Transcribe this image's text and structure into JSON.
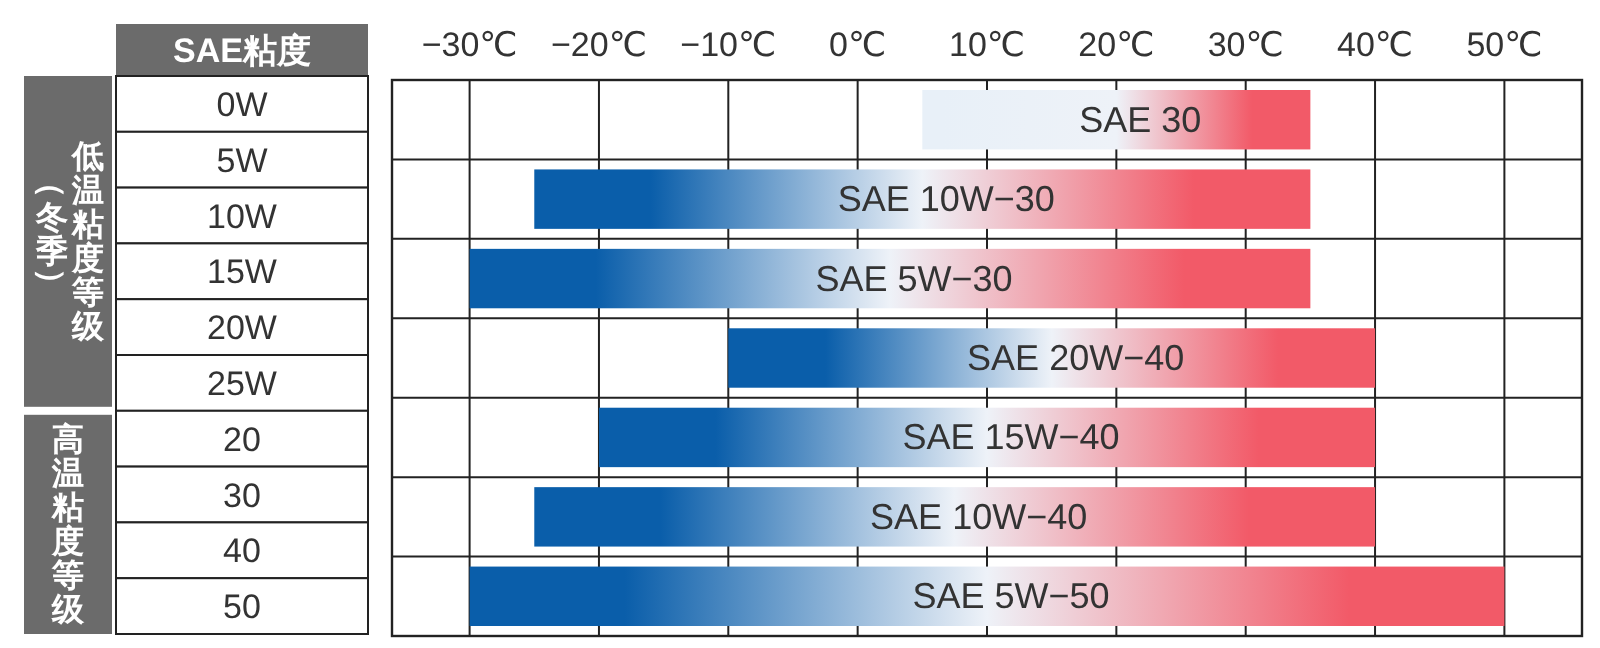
{
  "chart_data": {
    "type": "bar",
    "orientation": "horizontal",
    "categories": [
      "SAE 30",
      "SAE 10W−30",
      "SAE 5W−30",
      "SAE 20W−40",
      "SAE 15W−40",
      "SAE 10W−40",
      "SAE 5W−50"
    ],
    "series": [
      {
        "color": "#f25a68",
        "base": [
          5,
          -25,
          -30,
          -10,
          -20,
          -25,
          -30
        ],
        "values": [
          30,
          60,
          65,
          50,
          60,
          65,
          80
        ]
      }
    ],
    "xlim": [
      -36,
      56
    ],
    "xticks": [
      {
        "value": -30,
        "label": "−30℃"
      },
      {
        "value": -20,
        "label": "−20℃"
      },
      {
        "value": -10,
        "label": "−10℃"
      },
      {
        "value": 0,
        "label": "0℃"
      },
      {
        "value": 10,
        "label": "10℃"
      },
      {
        "value": 20,
        "label": "20℃"
      },
      {
        "value": 30,
        "label": "30℃"
      },
      {
        "value": 40,
        "label": "40℃"
      },
      {
        "value": 50,
        "label": "50℃"
      }
    ],
    "grid": "x",
    "annotations": [
      "SAE粘度",
      "0W",
      "5W",
      "10W",
      "15W",
      "20W",
      "25W",
      "20",
      "30",
      "40",
      "50",
      "（冬季）",
      "低温粘度等级",
      "高温粘度等级"
    ]
  }
}
